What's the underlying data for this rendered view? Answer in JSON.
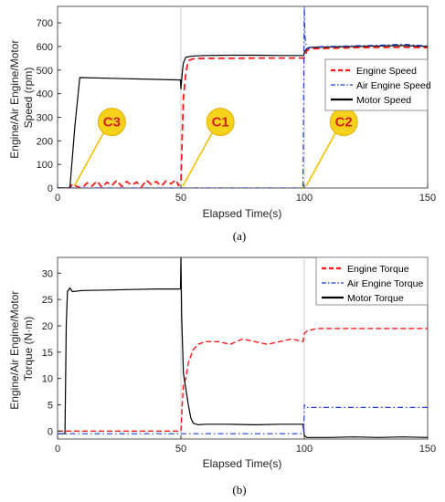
{
  "chart_data": [
    {
      "type": "line",
      "caption": "(a)",
      "xlabel": "Elapsed Time(s)",
      "ylabel_lines": [
        "Engine/Air Engine/Motor",
        "Speed (rpm)"
      ],
      "xlim": [
        0,
        150
      ],
      "ylim": [
        0,
        770
      ],
      "xticks": [
        0,
        50,
        100,
        150
      ],
      "yticks": [
        0,
        100,
        200,
        300,
        400,
        500,
        600,
        700
      ],
      "grid": "vertical lines at x = 50, 100",
      "legend_position": "right",
      "series": [
        {
          "name": "Engine Speed",
          "color": "#ff1a1a",
          "dash": "dashed",
          "x": [
            0,
            5,
            6,
            8,
            10,
            12,
            14,
            16,
            18,
            20,
            22,
            24,
            26,
            28,
            30,
            32,
            34,
            36,
            38,
            40,
            42,
            44,
            46,
            48,
            49,
            50,
            51,
            52,
            53,
            55,
            60,
            70,
            80,
            90,
            99,
            100,
            101,
            102,
            110,
            120,
            130,
            140,
            150
          ],
          "y": [
            0,
            0,
            18,
            5,
            0,
            22,
            8,
            30,
            2,
            24,
            10,
            33,
            6,
            28,
            12,
            25,
            4,
            34,
            14,
            28,
            8,
            30,
            18,
            35,
            10,
            30,
            380,
            490,
            540,
            548,
            550,
            550,
            551,
            551,
            551,
            551,
            580,
            590,
            592,
            595,
            596,
            597,
            595
          ]
        },
        {
          "name": "Air Engine Speed",
          "color": "#1f3fd6",
          "dash": "dashdot",
          "x": [
            0,
            99.5,
            100,
            100.3,
            100.8,
            101.5,
            103,
            110,
            120,
            130,
            140,
            150
          ],
          "y": [
            0,
            0,
            770,
            640,
            600,
            590,
            598,
            600,
            603,
            605,
            610,
            602
          ]
        },
        {
          "name": "Motor Speed",
          "color": "#000000",
          "dash": "solid",
          "x": [
            0,
            5,
            7,
            9,
            49.8,
            50,
            50.6,
            51,
            52,
            55,
            60,
            70,
            80,
            90,
            99.8,
            100,
            101,
            102,
            110,
            120,
            130,
            140,
            150
          ],
          "y": [
            0,
            0,
            260,
            468,
            458,
            420,
            495,
            530,
            555,
            560,
            562,
            563,
            563,
            562,
            562,
            575,
            590,
            596,
            598,
            600,
            602,
            604,
            600
          ]
        }
      ],
      "annotations": [
        {
          "label": "C3",
          "point": [
            6,
            0
          ],
          "at": [
            22,
            280
          ]
        },
        {
          "label": "C1",
          "point": [
            50,
            0
          ],
          "at": [
            66,
            280
          ]
        },
        {
          "label": "C2",
          "point": [
            100,
            0
          ],
          "at": [
            116,
            280
          ]
        }
      ]
    },
    {
      "type": "line",
      "caption": "(b)",
      "xlabel": "Elapsed Time(s)",
      "ylabel_lines": [
        "Engine/Air Engine/Motor",
        "Torque (N·m)"
      ],
      "xlim": [
        0,
        150
      ],
      "ylim": [
        -1.5,
        33
      ],
      "xticks": [
        0,
        50,
        100,
        150
      ],
      "yticks": [
        0,
        5,
        10,
        15,
        20,
        25,
        30
      ],
      "grid": "vertical lines at x = 50, 100",
      "legend_position": "top-right",
      "series": [
        {
          "name": "Engine Torque",
          "color": "#ff1a1a",
          "dash": "mixed",
          "x": [
            0,
            49.8,
            50,
            51,
            52,
            53,
            55,
            57,
            60,
            65,
            70,
            75,
            80,
            85,
            90,
            95,
            99.5,
            100,
            101,
            105,
            110,
            115,
            120,
            125,
            130,
            135,
            140,
            145,
            150
          ],
          "y": [
            0,
            0,
            0,
            9,
            10,
            13,
            15.5,
            16.5,
            17,
            17,
            16.5,
            17.5,
            17,
            16.5,
            17,
            17.5,
            17,
            18.5,
            19,
            19.5,
            19.5,
            19.5,
            19.5,
            19.5,
            19.5,
            19.5,
            19.5,
            19.5,
            19.5
          ]
        },
        {
          "name": "Air Engine Torque",
          "color": "#1f3fd6",
          "dash": "dashdot",
          "x": [
            0,
            99.8,
            100,
            100.5,
            110,
            120,
            130,
            140,
            150
          ],
          "y": [
            -0.5,
            -0.5,
            5,
            4.5,
            4.5,
            4.5,
            4.5,
            4.5,
            4.5
          ]
        },
        {
          "name": "Motor Torque",
          "color": "#000000",
          "dash": "solid",
          "x": [
            0,
            3,
            3.5,
            4,
            5,
            6,
            10,
            20,
            30,
            40,
            49.8,
            50,
            50.3,
            51,
            52,
            53,
            54,
            55,
            57,
            60,
            70,
            80,
            90,
            99.5,
            100,
            101,
            110,
            120,
            130,
            140,
            150
          ],
          "y": [
            -0.5,
            -0.5,
            20,
            26.5,
            27.2,
            26.5,
            26.7,
            26.8,
            26.9,
            27,
            27,
            33,
            22,
            11,
            8,
            5,
            2.5,
            1.5,
            1.2,
            1.3,
            1.3,
            1.2,
            1.3,
            1.3,
            -0.8,
            -1.2,
            -1.2,
            -1.1,
            -1.2,
            -1.1,
            -1.2
          ]
        }
      ]
    }
  ]
}
